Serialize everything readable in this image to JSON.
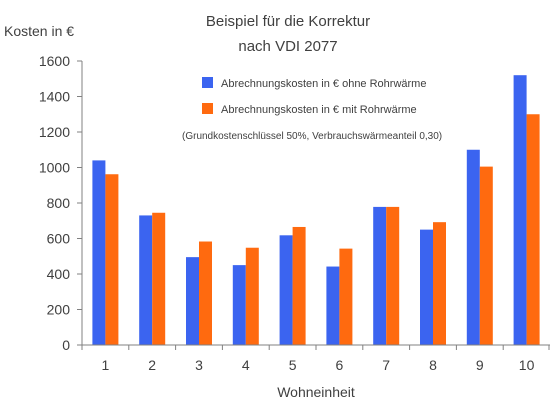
{
  "chart_data": {
    "type": "bar",
    "title_lines": [
      "Beispiel für die Korrektur",
      "nach VDI 2077"
    ],
    "ylabel": "Kosten in €",
    "xlabel": "Wohneinheit",
    "categories": [
      "1",
      "2",
      "3",
      "4",
      "5",
      "6",
      "7",
      "8",
      "9",
      "10"
    ],
    "ylim": [
      0,
      1600
    ],
    "yticks": [
      "0",
      "200",
      "400",
      "600",
      "800",
      "1000",
      "1200",
      "1400",
      "1600"
    ],
    "grid": false,
    "legend_position": "top-right",
    "annotation": "(Grundkostenschlüssel 50%, Verbrauchswärmeanteil 0,30)",
    "series": [
      {
        "name": "Abrechnungskosten in € ohne Rohrwärme",
        "color": "#3b64f0",
        "values": [
          1040,
          730,
          495,
          450,
          618,
          442,
          778,
          650,
          1100,
          1520
        ]
      },
      {
        "name": "Abrechnungskosten in € mit Rohrwärme",
        "color": "#ff6a0f",
        "values": [
          962,
          745,
          583,
          548,
          665,
          543,
          778,
          692,
          1005,
          1300
        ]
      }
    ]
  }
}
